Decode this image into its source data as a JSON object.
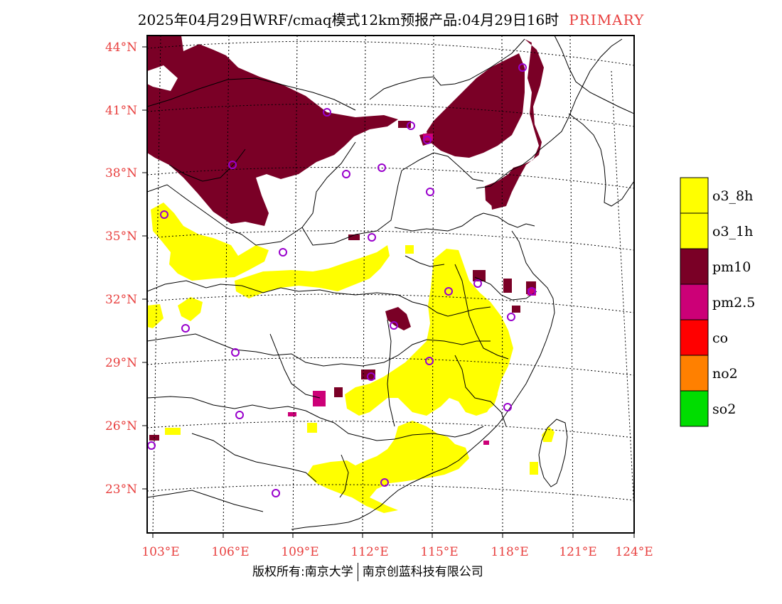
{
  "title": {
    "text": "2025年04月29日WRF/cmaq模式12km预报产品:04月29日16时",
    "tag": "PRIMARY"
  },
  "axes": {
    "lat_labels": [
      "44°N",
      "41°N",
      "38°N",
      "35°N",
      "32°N",
      "29°N",
      "26°N",
      "23°N"
    ],
    "lon_labels": [
      "103°E",
      "106°E",
      "109°E",
      "112°E",
      "115°E",
      "118°E",
      "121°E",
      "124°E"
    ],
    "label_color": "#e8403f"
  },
  "legend": [
    {
      "label": "o3_8h",
      "color": "#ffff00"
    },
    {
      "label": "o3_1h",
      "color": "#ffff00"
    },
    {
      "label": "pm10",
      "color": "#7a0026"
    },
    {
      "label": "pm2.5",
      "color": "#cc0077"
    },
    {
      "label": "co",
      "color": "#ff0000"
    },
    {
      "label": "no2",
      "color": "#ff8000"
    },
    {
      "label": "so2",
      "color": "#00dd00"
    }
  ],
  "footer": {
    "left": "版权所有:南京大学",
    "right": "南京创蓝科技有限公司"
  },
  "colors": {
    "frame": "#000000",
    "border": "#000000",
    "city": "#9900cc"
  }
}
